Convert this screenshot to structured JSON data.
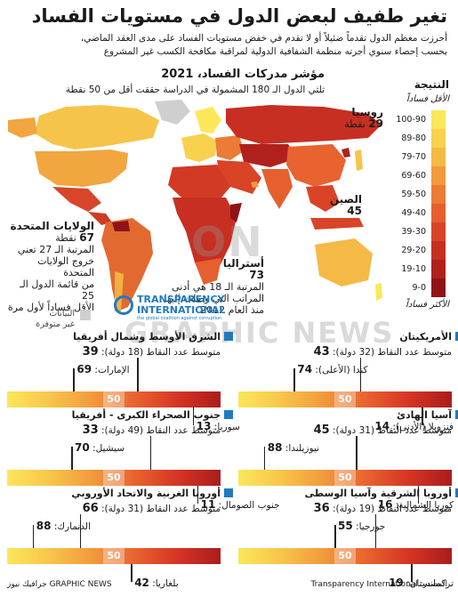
{
  "title": "تغير طفيف لبعض الدول في مستويات الفساد",
  "subtitle_line1": "أحرزت معظم الدول تقدماً ضئيلاً أو لا تقدم في خفض مستويات الفساد على مدى العقد الماضي،",
  "subtitle_line2": "بحسب إحصاء سنوي أجرته منظمة الشفافية الدولية لمراقبة مكافحة الكسب غير المشروع",
  "map_title": "مؤشر مدركات الفساد، 2021",
  "map_subtitle": "ثلثي الدول الـ 180 المشمولة في الدراسة حققت أقل من 50 نقطة",
  "legend": {
    "title": "النتيجة",
    "least": "الأقل فساداً",
    "most": "الأكثر فساداً",
    "ranges": [
      "100-90",
      "89-80",
      "79-70",
      "69-60",
      "59-50",
      "49-40",
      "39-30",
      "29-20",
      "19-10",
      "9-0"
    ],
    "colors": [
      "#fbe75a",
      "#f8d14e",
      "#f5b946",
      "#f29a3d",
      "#ec7b35",
      "#e5602e",
      "#d94427",
      "#c72f22",
      "#b0211e",
      "#8e1417"
    ]
  },
  "callouts": {
    "russia_name": "روسيا",
    "russia_score": "29",
    "russia_unit": "نقطة",
    "china_name": "الصين",
    "china_score": "45",
    "usa_name": "الولايات المتحدة",
    "usa_score": "67",
    "usa_unit": "نقطة",
    "usa_note_1": "المرتبة الـ 27 تعني",
    "usa_note_2": "خروج الولايات المتحدة",
    "usa_note_3": "من قائمة الدول الـ 25",
    "usa_note_4": "الأقل فساداً لأول مرة",
    "australia_name": "أستراليا",
    "australia_score": "73",
    "australia_note_1": "المرتبة الـ 18 هي أدنى",
    "australia_note_2": "المراتب التي وصلت إليها",
    "australia_note_3": "منذ العام 2012",
    "nodata_1": "البيانات",
    "nodata_2": "غير متوفرة"
  },
  "logo": {
    "line1": "TRANSPARENCY",
    "line2": "INTERNATIONAL",
    "line3": "the global coalition against corruption"
  },
  "watermark_1": "ON",
  "watermark_2": "GRAPHIC NEWS",
  "bar_mid_label": "50",
  "avg_prefix": "متوسط عدد النقاط",
  "chart_data": [
    {
      "type": "bar",
      "region": "الأمريكيتان",
      "average": 43,
      "countries_note": "(32 دولة)",
      "flags": [
        {
          "label": "كندا (الأعلى)",
          "value": 74
        },
        {
          "label": "فنزويلا (الأدنى)",
          "value": 14
        }
      ]
    },
    {
      "type": "bar",
      "region": "الشرق الأوسط وشمال أفريقيا",
      "average": 39,
      "countries_note": "(18 دولة)",
      "flags": [
        {
          "label": "الإمارات",
          "value": 69
        },
        {
          "label": "سوريا",
          "value": 13
        }
      ]
    },
    {
      "type": "bar",
      "region": "آسيا الهادئ",
      "average": 45,
      "countries_note": "(31 دولة)",
      "flags": [
        {
          "label": "نيوزيلندا",
          "value": 88
        },
        {
          "label": "كوريا الشمالية",
          "value": 16
        }
      ]
    },
    {
      "type": "bar",
      "region": "جنوب الصحراء الكبرى - أفريقيا",
      "average": 33,
      "countries_note": "(49 دولة)",
      "flags": [
        {
          "label": "سيشيل",
          "value": 70
        },
        {
          "label": "جنوب الصومال",
          "value": 11
        }
      ]
    },
    {
      "type": "bar",
      "region": "أوروبا الشرقية وآسيا الوسطى",
      "average": 36,
      "countries_note": "(19 دولة)",
      "flags": [
        {
          "label": "جورجيا",
          "value": 55
        },
        {
          "label": "تركمانستان",
          "value": 19
        }
      ]
    },
    {
      "type": "bar",
      "region": "أوروبا الغربية والاتحاد الأوروبي",
      "average": 66,
      "countries_note": "(31 دولة)",
      "flags": [
        {
          "label": "الدنمارك",
          "value": 88
        },
        {
          "label": "بلغاريا",
          "value": 42
        }
      ]
    }
  ],
  "footer_source": "المصدر: Transparency International",
  "footer_credit": "جرافيك نيوز GRAPHIC NEWS"
}
